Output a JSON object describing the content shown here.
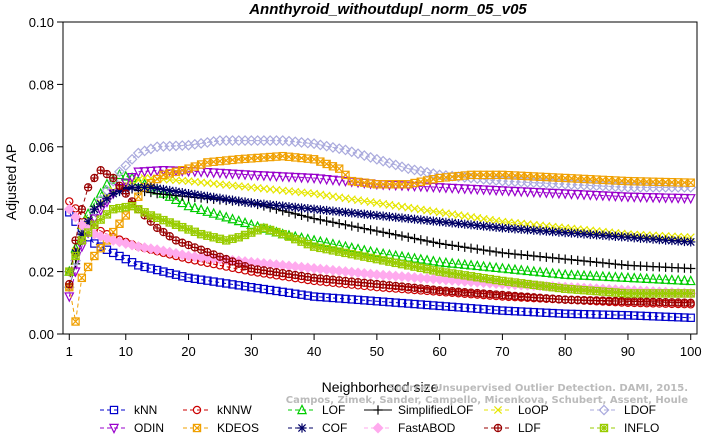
{
  "chart_data": {
    "type": "line",
    "title": "Annthyroid_withoutdupl_norm_05_v05",
    "xlabel": "Neighborhood size",
    "ylabel": "Adjusted AP",
    "xlim": [
      0,
      101
    ],
    "ylim": [
      0,
      0.1
    ],
    "xticks": [
      1,
      10,
      20,
      30,
      40,
      50,
      60,
      70,
      80,
      90,
      100
    ],
    "yticks": [
      0.0,
      0.02,
      0.04,
      0.06,
      0.08,
      0.1
    ],
    "ytick_labels": [
      "0.00",
      "0.02",
      "0.04",
      "0.06",
      "0.08",
      "0.10"
    ],
    "grid": false,
    "legend_position": "bottom",
    "watermark": [
      "Source: Unsupervised Outlier Detection. DAMI, 2015.",
      "Campos, Zimek, Sander, Campello, Micenkova, Schubert, Assent, Houle"
    ],
    "series": [
      {
        "name": "kNN",
        "color": "#0000cc",
        "marker": "square",
        "dash": "4,3",
        "points": [
          [
            1,
            0.039
          ],
          [
            3,
            0.033
          ],
          [
            5,
            0.029
          ],
          [
            8,
            0.026
          ],
          [
            12,
            0.022
          ],
          [
            20,
            0.018
          ],
          [
            30,
            0.015
          ],
          [
            40,
            0.012
          ],
          [
            50,
            0.0105
          ],
          [
            60,
            0.009
          ],
          [
            70,
            0.0075
          ],
          [
            80,
            0.0065
          ],
          [
            90,
            0.006
          ],
          [
            100,
            0.0052
          ]
        ]
      },
      {
        "name": "kNNW",
        "color": "#cc0000",
        "marker": "circle",
        "dash": "4,3",
        "points": [
          [
            1,
            0.0425
          ],
          [
            3,
            0.038
          ],
          [
            5,
            0.034
          ],
          [
            8,
            0.031
          ],
          [
            12,
            0.028
          ],
          [
            20,
            0.024
          ],
          [
            30,
            0.02
          ],
          [
            40,
            0.017
          ],
          [
            50,
            0.015
          ],
          [
            60,
            0.0135
          ],
          [
            70,
            0.012
          ],
          [
            80,
            0.011
          ],
          [
            90,
            0.01
          ],
          [
            100,
            0.0095
          ]
        ]
      },
      {
        "name": "LOF",
        "color": "#00cc00",
        "marker": "triangle-up",
        "dash": "4,3",
        "points": [
          [
            1,
            0.02
          ],
          [
            3,
            0.035
          ],
          [
            5,
            0.042
          ],
          [
            7,
            0.048
          ],
          [
            9,
            0.051
          ],
          [
            11,
            0.05
          ],
          [
            14,
            0.047
          ],
          [
            20,
            0.041
          ],
          [
            25,
            0.038
          ],
          [
            30,
            0.035
          ],
          [
            35,
            0.032
          ],
          [
            40,
            0.03
          ],
          [
            50,
            0.026
          ],
          [
            60,
            0.023
          ],
          [
            70,
            0.021
          ],
          [
            80,
            0.019
          ],
          [
            90,
            0.018
          ],
          [
            100,
            0.017
          ]
        ]
      },
      {
        "name": "SimplifiedLOF",
        "color": "#000000",
        "marker": "plus",
        "dash": "",
        "points": [
          [
            1,
            0.015
          ],
          [
            3,
            0.03
          ],
          [
            5,
            0.04
          ],
          [
            8,
            0.045
          ],
          [
            10,
            0.047
          ],
          [
            12,
            0.046
          ],
          [
            15,
            0.045
          ],
          [
            20,
            0.044
          ],
          [
            30,
            0.042
          ],
          [
            40,
            0.037
          ],
          [
            50,
            0.033
          ],
          [
            60,
            0.029
          ],
          [
            70,
            0.026
          ],
          [
            80,
            0.024
          ],
          [
            90,
            0.022
          ],
          [
            100,
            0.021
          ]
        ]
      },
      {
        "name": "LoOP",
        "color": "#e6e600",
        "marker": "x",
        "dash": "4,3",
        "points": [
          [
            1,
            0.02
          ],
          [
            3,
            0.033
          ],
          [
            5,
            0.04
          ],
          [
            8,
            0.046
          ],
          [
            10,
            0.048
          ],
          [
            13,
            0.05
          ],
          [
            20,
            0.049
          ],
          [
            30,
            0.047
          ],
          [
            40,
            0.045
          ],
          [
            50,
            0.042
          ],
          [
            60,
            0.039
          ],
          [
            70,
            0.036
          ],
          [
            80,
            0.034
          ],
          [
            90,
            0.032
          ],
          [
            100,
            0.031
          ]
        ]
      },
      {
        "name": "LDOF",
        "color": "#aaaadd",
        "marker": "diamond",
        "dash": "4,3",
        "points": [
          [
            1,
            0.015
          ],
          [
            3,
            0.032
          ],
          [
            6,
            0.043
          ],
          [
            9,
            0.052
          ],
          [
            12,
            0.058
          ],
          [
            15,
            0.06
          ],
          [
            20,
            0.0605
          ],
          [
            25,
            0.062
          ],
          [
            30,
            0.062
          ],
          [
            35,
            0.062
          ],
          [
            40,
            0.061
          ],
          [
            45,
            0.059
          ],
          [
            50,
            0.056
          ],
          [
            55,
            0.053
          ],
          [
            60,
            0.051
          ],
          [
            70,
            0.049
          ],
          [
            80,
            0.048
          ],
          [
            90,
            0.047
          ],
          [
            100,
            0.047
          ]
        ]
      },
      {
        "name": "ODIN",
        "color": "#9900cc",
        "marker": "triangle-down",
        "dash": "4,3",
        "points": [
          [
            1,
            0.012
          ],
          [
            3,
            0.028
          ],
          [
            5,
            0.037
          ],
          [
            8,
            0.045
          ],
          [
            12,
            0.052
          ],
          [
            16,
            0.0525
          ],
          [
            22,
            0.052
          ],
          [
            30,
            0.051
          ],
          [
            40,
            0.05
          ],
          [
            50,
            0.048
          ],
          [
            60,
            0.047
          ],
          [
            70,
            0.046
          ],
          [
            80,
            0.045
          ],
          [
            90,
            0.044
          ],
          [
            100,
            0.0435
          ]
        ]
      },
      {
        "name": "KDEOS",
        "color": "#f0a000",
        "marker": "square-x",
        "dash": "4,3",
        "points": [
          [
            1,
            0.015
          ],
          [
            2,
            0.004
          ],
          [
            3,
            0.018
          ],
          [
            5,
            0.025
          ],
          [
            7,
            0.03
          ],
          [
            10,
            0.038
          ],
          [
            13,
            0.047
          ],
          [
            16,
            0.051
          ],
          [
            20,
            0.053
          ],
          [
            23,
            0.055
          ],
          [
            28,
            0.056
          ],
          [
            35,
            0.057
          ],
          [
            40,
            0.056
          ],
          [
            44,
            0.053
          ],
          [
            46,
            0.049
          ],
          [
            50,
            0.048
          ],
          [
            55,
            0.048
          ],
          [
            60,
            0.05
          ],
          [
            65,
            0.051
          ],
          [
            70,
            0.051
          ],
          [
            80,
            0.05
          ],
          [
            90,
            0.049
          ],
          [
            100,
            0.0485
          ]
        ]
      },
      {
        "name": "COF",
        "color": "#000066",
        "marker": "asterisk",
        "dash": "4,3",
        "points": [
          [
            1,
            0.02
          ],
          [
            3,
            0.032
          ],
          [
            5,
            0.04
          ],
          [
            8,
            0.045
          ],
          [
            11,
            0.047
          ],
          [
            14,
            0.047
          ],
          [
            20,
            0.045
          ],
          [
            30,
            0.042
          ],
          [
            40,
            0.04
          ],
          [
            50,
            0.038
          ],
          [
            60,
            0.036
          ],
          [
            70,
            0.034
          ],
          [
            80,
            0.0325
          ],
          [
            90,
            0.031
          ],
          [
            100,
            0.0295
          ]
        ]
      },
      {
        "name": "FastABOD",
        "color": "#ffaaee",
        "marker": "diamond-filled",
        "dash": "4,3",
        "points": [
          [
            1,
            0.04
          ],
          [
            3,
            0.035
          ],
          [
            5,
            0.032
          ],
          [
            8,
            0.03
          ],
          [
            12,
            0.028
          ],
          [
            15,
            0.027
          ],
          [
            20,
            0.025
          ],
          [
            30,
            0.023
          ],
          [
            40,
            0.021
          ],
          [
            50,
            0.019
          ],
          [
            60,
            0.0175
          ],
          [
            70,
            0.016
          ],
          [
            80,
            0.015
          ],
          [
            90,
            0.014
          ],
          [
            100,
            0.013
          ]
        ]
      },
      {
        "name": "LDF",
        "color": "#990000",
        "marker": "circle-plus",
        "dash": "4,3",
        "points": [
          [
            1,
            0.016
          ],
          [
            2,
            0.03
          ],
          [
            3,
            0.04
          ],
          [
            4,
            0.047
          ],
          [
            5,
            0.05
          ],
          [
            6,
            0.0525
          ],
          [
            8,
            0.05
          ],
          [
            10,
            0.045
          ],
          [
            12,
            0.04
          ],
          [
            15,
            0.034
          ],
          [
            18,
            0.03
          ],
          [
            22,
            0.027
          ],
          [
            26,
            0.024
          ],
          [
            30,
            0.021
          ],
          [
            40,
            0.018
          ],
          [
            50,
            0.016
          ],
          [
            60,
            0.014
          ],
          [
            70,
            0.0125
          ],
          [
            80,
            0.011
          ],
          [
            90,
            0.0105
          ],
          [
            100,
            0.01
          ]
        ]
      },
      {
        "name": "INFLO",
        "color": "#99cc00",
        "marker": "square-star",
        "dash": "4,3",
        "points": [
          [
            1,
            0.02
          ],
          [
            3,
            0.03
          ],
          [
            5,
            0.035
          ],
          [
            8,
            0.04
          ],
          [
            11,
            0.041
          ],
          [
            14,
            0.038
          ],
          [
            18,
            0.035
          ],
          [
            22,
            0.032
          ],
          [
            26,
            0.03
          ],
          [
            28,
            0.031
          ],
          [
            32,
            0.034
          ],
          [
            35,
            0.032
          ],
          [
            40,
            0.028
          ],
          [
            50,
            0.024
          ],
          [
            60,
            0.02
          ],
          [
            70,
            0.017
          ],
          [
            80,
            0.0145
          ],
          [
            90,
            0.013
          ],
          [
            100,
            0.013
          ]
        ]
      }
    ],
    "legend_layout": [
      [
        "kNN",
        "kNNW",
        "LOF",
        "SimplifiedLOF",
        "LoOP",
        "LDOF"
      ],
      [
        "ODIN",
        "KDEOS",
        "COF",
        "FastABOD",
        "LDF",
        "INFLO"
      ]
    ]
  }
}
